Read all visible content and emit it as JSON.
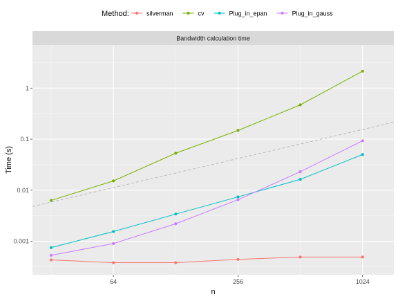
{
  "chart_data": {
    "type": "line",
    "title": "",
    "strip_label": "Bandwidth calculation time",
    "xlabel": "n",
    "ylabel": "Time (s)",
    "x_scale": "log2",
    "y_scale": "log10",
    "xlim": [
      26,
      1450
    ],
    "ylim": [
      0.00022,
      7.0
    ],
    "x_ticks": [
      64,
      256,
      1024
    ],
    "x_tick_labels": [
      "64",
      "256",
      "1024"
    ],
    "y_ticks": [
      0.001,
      0.01,
      0.1,
      1
    ],
    "y_tick_labels": [
      "0.001",
      "0.01",
      "0.1",
      "1"
    ],
    "grid": true,
    "legend": {
      "title": "Method:",
      "position": "top"
    },
    "x": [
      32,
      64,
      128,
      256,
      512,
      1024
    ],
    "series": [
      {
        "name": "silverman",
        "color": "#F8766D",
        "values": [
          0.00043,
          0.00038,
          0.00038,
          0.00044,
          0.00049,
          0.00049
        ]
      },
      {
        "name": "cv",
        "color": "#7CAE00",
        "values": [
          0.0063,
          0.0152,
          0.053,
          0.148,
          0.47,
          2.15
        ]
      },
      {
        "name": "Plug_in_epan",
        "color": "#00BFC4",
        "values": [
          0.00075,
          0.00155,
          0.0034,
          0.0074,
          0.0163,
          0.05
        ]
      },
      {
        "name": "Plug_in_gauss",
        "color": "#C77CFF",
        "values": [
          0.00053,
          0.0009,
          0.0022,
          0.0065,
          0.023,
          0.093
        ]
      }
    ],
    "reference_line": {
      "color": "#b3b3b3",
      "style": "dashed",
      "points": [
        [
          26,
          0.0048
        ],
        [
          1450,
          0.215
        ]
      ]
    }
  }
}
